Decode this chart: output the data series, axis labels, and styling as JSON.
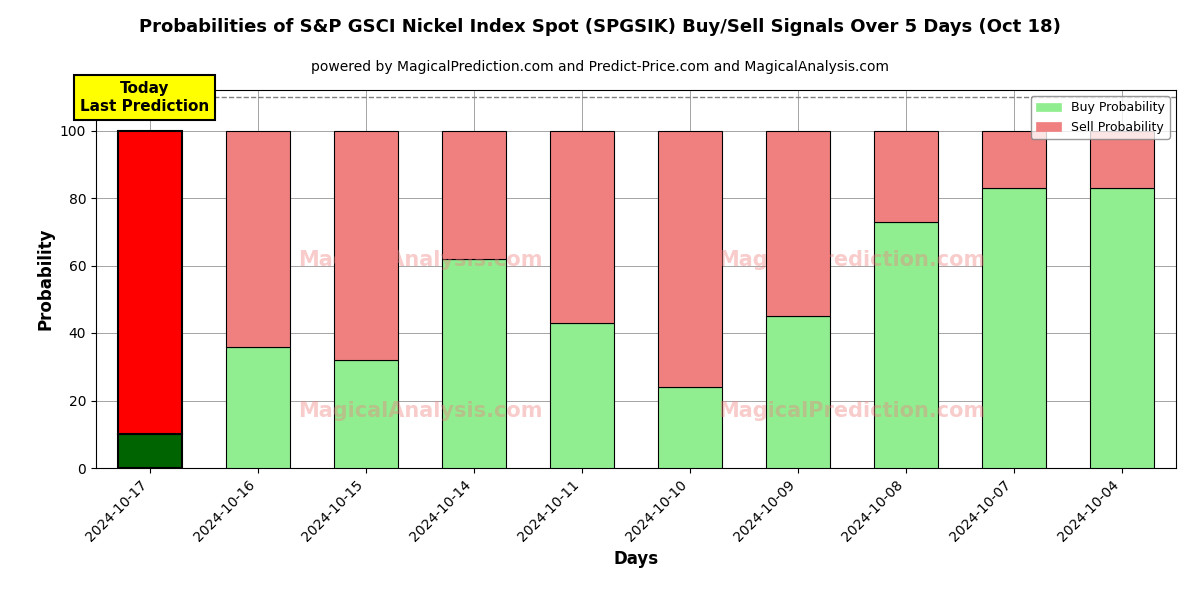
{
  "title": "Probabilities of S&P GSCI Nickel Index Spot (SPGSIK) Buy/Sell Signals Over 5 Days (Oct 18)",
  "subtitle": "powered by MagicalPrediction.com and Predict-Price.com and MagicalAnalysis.com",
  "xlabel": "Days",
  "ylabel": "Probability",
  "categories": [
    "2024-10-17",
    "2024-10-16",
    "2024-10-15",
    "2024-10-14",
    "2024-10-11",
    "2024-10-10",
    "2024-10-09",
    "2024-10-08",
    "2024-10-07",
    "2024-10-04"
  ],
  "buy_values": [
    10,
    36,
    32,
    62,
    43,
    24,
    45,
    73,
    83,
    83
  ],
  "sell_values": [
    90,
    64,
    68,
    38,
    57,
    76,
    55,
    27,
    17,
    17
  ],
  "today_bar": "2024-10-17",
  "today_buy_color": "#006400",
  "today_sell_color": "#FF0000",
  "buy_color": "#90EE90",
  "sell_color": "#F08080",
  "ylim": [
    0,
    112
  ],
  "yticks": [
    0,
    20,
    40,
    60,
    80,
    100
  ],
  "dashed_line_y": 110,
  "annotation_text": "Today\nLast Prediction",
  "annotation_bg": "#FFFF00",
  "bar_width": 0.6,
  "legend_buy_color": "#90EE90",
  "legend_sell_color": "#F08080",
  "title_fontsize": 13,
  "subtitle_fontsize": 10
}
